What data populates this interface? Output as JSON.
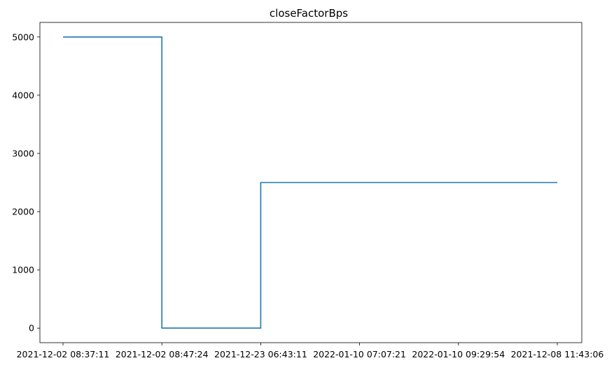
{
  "chart_data": {
    "type": "line",
    "title": "closeFactorBps",
    "xlabel": "",
    "ylabel": "",
    "step": "post",
    "categories": [
      "2021-12-02 08:37:11",
      "2021-12-02 08:47:24",
      "2021-12-23 06:43:11",
      "2022-01-10 07:07:21",
      "2022-01-10 09:29:54",
      "2021-12-08 11:43:06"
    ],
    "series": [
      {
        "color": "#1f77b4",
        "values": [
          5000,
          0,
          2500,
          2500,
          2500,
          2500
        ]
      }
    ],
    "yticks": [
      0,
      1000,
      2000,
      3000,
      4000,
      5000
    ],
    "ylim": [
      -250,
      5250
    ],
    "grid": false,
    "legend": "none"
  }
}
